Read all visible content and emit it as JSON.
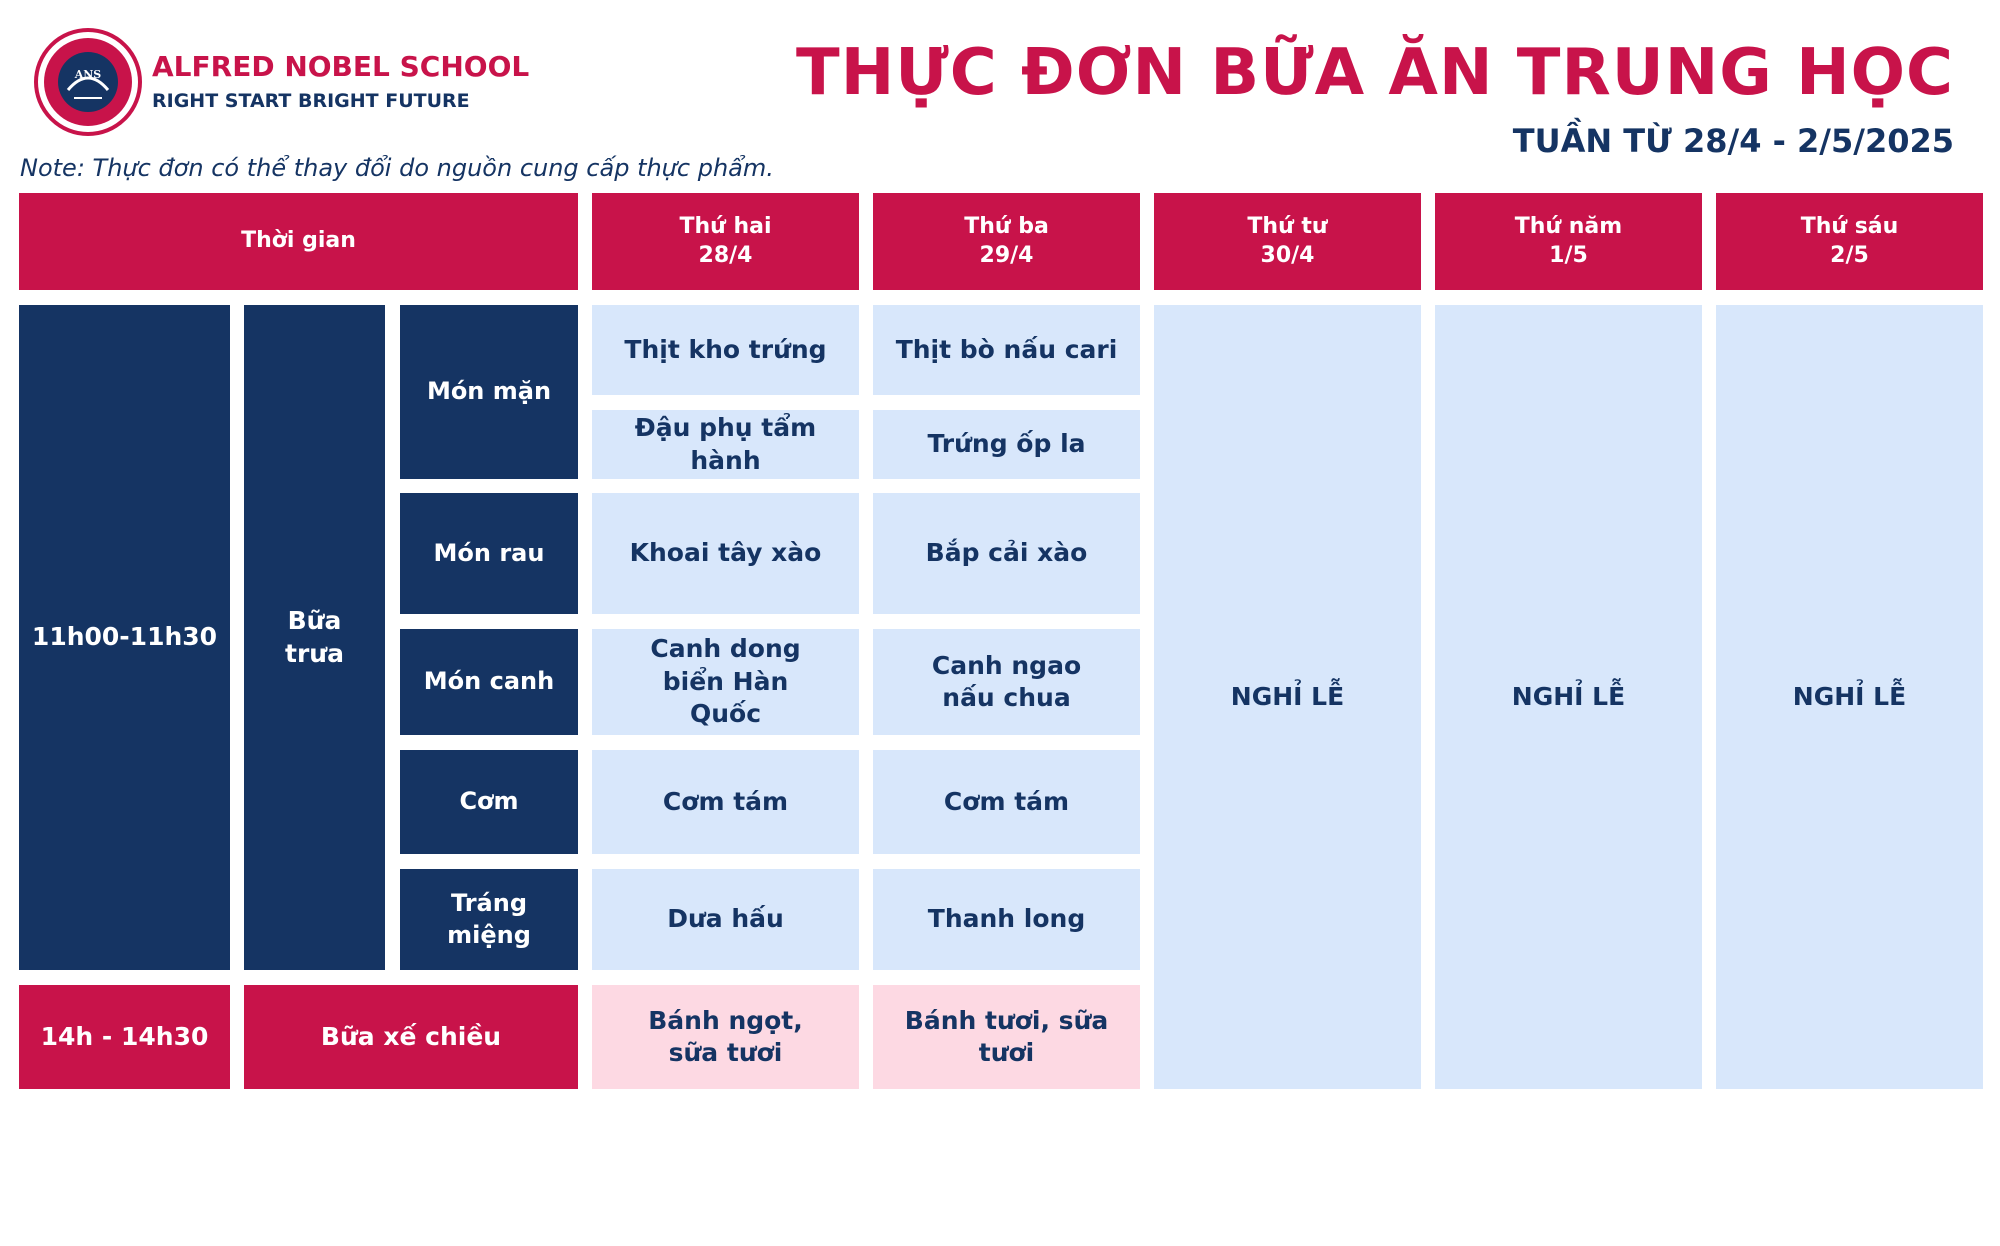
{
  "header": {
    "school_name": "ALFRED NOBEL SCHOOL",
    "slogan": "RIGHT START  BRIGHT FUTURE",
    "logo_initials": "ANS",
    "title": "THỰC ĐƠN BỮA ĂN TRUNG HỌC",
    "week": "TUẦN TỪ 28/4 - 2/5/2025",
    "note": "Note: Thực đơn có thể thay đổi do nguồn cung cấp thực phẩm."
  },
  "colors": {
    "red": "#c8134a",
    "navy": "#153463",
    "light_blue": "#d8e7fb",
    "pink": "#fdd9e3"
  },
  "table": {
    "time_header": "Thời gian",
    "days": [
      {
        "name": "Thứ hai",
        "date": "28/4"
      },
      {
        "name": "Thứ ba",
        "date": "29/4"
      },
      {
        "name": "Thứ tư",
        "date": "30/4"
      },
      {
        "name": "Thứ năm",
        "date": "1/5"
      },
      {
        "name": "Thứ sáu",
        "date": "2/5"
      }
    ],
    "lunch": {
      "time": "11h00-11h30",
      "meal": "Bữa trưa",
      "categories": {
        "main": "Món mặn",
        "veg": "Món rau",
        "soup": "Món canh",
        "rice": "Cơm",
        "dessert": "Tráng miệng"
      },
      "monday": {
        "main1": "Thịt kho trứng",
        "main2": "Đậu phụ tẩm hành",
        "veg": "Khoai tây xào",
        "soup": "Canh dong biển Hàn Quốc",
        "rice": "Cơm tám",
        "dessert": "Dưa hấu"
      },
      "tuesday": {
        "main1": "Thịt bò nấu cari",
        "main2": "Trứng ốp la",
        "veg": "Bắp cải xào",
        "soup": "Canh ngao nấu chua",
        "rice": "Cơm tám",
        "dessert": "Thanh long"
      }
    },
    "snack": {
      "time": "14h - 14h30",
      "meal": "Bữa xế chiều",
      "monday": "Bánh ngọt, sữa tươi",
      "tuesday": "Bánh tươi, sữa tươi"
    },
    "holiday": {
      "wednesday": "NGHỈ LỄ",
      "thursday": "NGHỈ LỄ",
      "friday": "NGHỈ LỄ"
    }
  }
}
